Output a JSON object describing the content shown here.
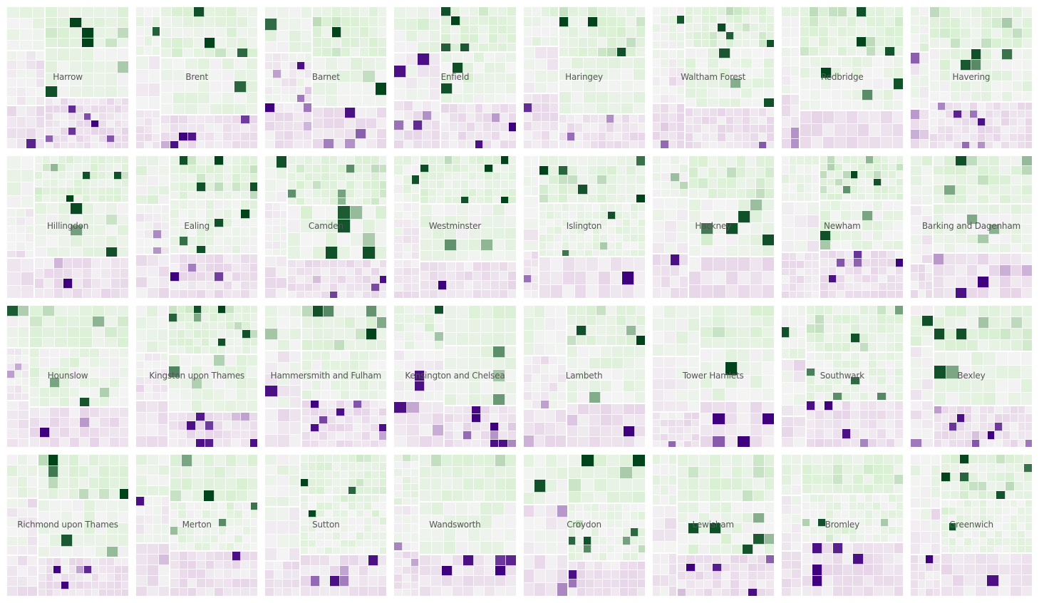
{
  "chart_data": {
    "type": "heatmap",
    "layout": "small-multiples treemap grid",
    "rows": 4,
    "cols": 8,
    "color_scale": {
      "negative": "#3f007d",
      "negative_light": "#e7d4e8",
      "neutral": "#f4f4f4",
      "positive_light": "#d9f0d3",
      "positive": "#00441b"
    },
    "panels": [
      {
        "label": "Harrow"
      },
      {
        "label": "Brent"
      },
      {
        "label": "Barnet"
      },
      {
        "label": "Enfield"
      },
      {
        "label": "Haringey"
      },
      {
        "label": "Waltham Forest"
      },
      {
        "label": "Redbridge"
      },
      {
        "label": "Havering"
      },
      {
        "label": "Hillingdon"
      },
      {
        "label": "Ealing"
      },
      {
        "label": "Camden"
      },
      {
        "label": "Westminster"
      },
      {
        "label": "Islington"
      },
      {
        "label": "Hackney"
      },
      {
        "label": "Newham"
      },
      {
        "label": "Barking and Dagenham"
      },
      {
        "label": "Hounslow"
      },
      {
        "label": "Kingston upon Thames"
      },
      {
        "label": "Hammersmith and Fulham"
      },
      {
        "label": "Kensington and Chelsea"
      },
      {
        "label": "Lambeth"
      },
      {
        "label": "Tower Hamlets"
      },
      {
        "label": "Southwark"
      },
      {
        "label": "Bexley"
      },
      {
        "label": "Richmond upon Thames"
      },
      {
        "label": "Merton"
      },
      {
        "label": "Sutton"
      },
      {
        "label": "Wandsworth"
      },
      {
        "label": "Croydon"
      },
      {
        "label": "Lewisham"
      },
      {
        "label": "Bromley"
      },
      {
        "label": "Greenwich"
      }
    ]
  }
}
